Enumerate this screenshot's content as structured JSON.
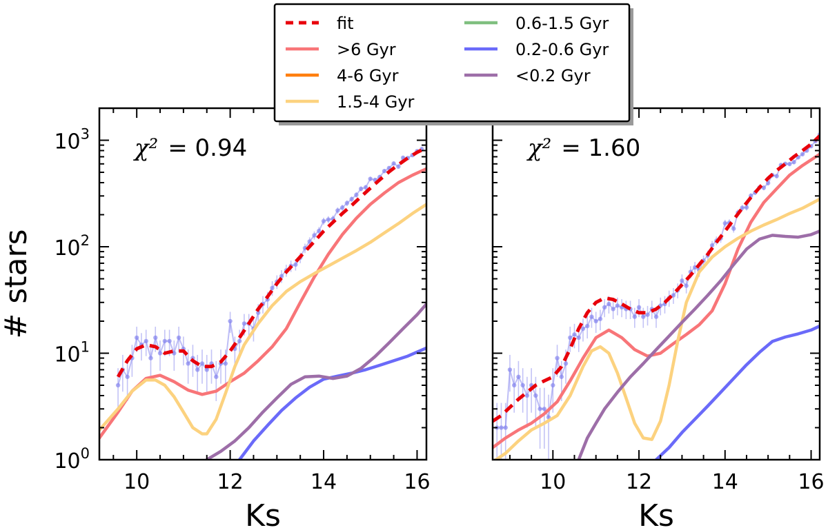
{
  "chart_data": [
    {
      "type": "line",
      "panel": "left",
      "annotation": {
        "symbol": "χ²",
        "value": "0.94"
      },
      "xlabel": "Ks",
      "ylabel": "# stars",
      "xlim": [
        9.2,
        16.2
      ],
      "ylim": [
        1,
        2000
      ],
      "yscale": "log",
      "xticks": [
        10,
        12,
        14,
        16
      ],
      "yticks": [
        {
          "v": 1,
          "base": "10",
          "exp": "0"
        },
        {
          "v": 10,
          "base": "10",
          "exp": "1"
        },
        {
          "v": 100,
          "base": "10",
          "exp": "2"
        },
        {
          "v": 1000,
          "base": "10",
          "exp": "3"
        }
      ],
      "observed": {
        "name": "data",
        "x": [
          9.6,
          9.7,
          9.8,
          9.9,
          10.0,
          10.1,
          10.2,
          10.3,
          10.4,
          10.5,
          10.6,
          10.7,
          10.8,
          10.9,
          11.0,
          11.1,
          11.2,
          11.3,
          11.4,
          11.5,
          11.6,
          11.7,
          11.8,
          11.9,
          12.0,
          12.1,
          12.2,
          12.3,
          12.4,
          12.5,
          12.6,
          12.7,
          12.8,
          12.9,
          13.0,
          13.1,
          13.2,
          13.3,
          13.4,
          13.5,
          13.6,
          13.7,
          13.8,
          13.9,
          14.0,
          14.1,
          14.2,
          14.3,
          14.4,
          14.5,
          14.6,
          14.7,
          14.8,
          14.9,
          15.0,
          15.1,
          15.2,
          15.3,
          15.4,
          15.5,
          15.6,
          15.7,
          15.8,
          15.9,
          16.0,
          16.1
        ],
        "y": [
          5,
          7,
          6,
          9,
          14,
          12,
          13,
          9,
          14,
          10,
          13,
          13,
          10,
          14,
          11,
          8,
          9,
          7,
          8,
          7,
          8,
          6,
          8,
          8,
          20,
          11,
          13,
          19,
          19,
          17,
          24,
          29,
          32,
          41,
          47,
          53,
          60,
          66,
          68,
          79,
          97,
          112,
          128,
          141,
          174,
          180,
          183,
          219,
          233,
          257,
          280,
          307,
          350,
          361,
          434,
          424,
          452,
          514,
          548,
          605,
          566,
          686,
          680,
          725,
          790,
          827
        ]
      },
      "series": [
        {
          "name": "fit",
          "color": "#e8000b",
          "dash": true,
          "x": [
            9.6,
            9.8,
            10.0,
            10.2,
            10.4,
            10.6,
            10.8,
            11.0,
            11.2,
            11.4,
            11.6,
            11.8,
            12.0,
            12.2,
            12.4,
            12.6,
            12.8,
            13.0,
            13.2,
            13.4,
            13.6,
            13.8,
            14.0,
            14.2,
            14.4,
            14.6,
            14.8,
            15.0,
            15.2,
            15.4,
            15.6,
            15.8,
            16.0,
            16.2
          ],
          "y": [
            6,
            8.5,
            11,
            12,
            11.5,
            10,
            10.5,
            10.5,
            8.5,
            7.5,
            7.5,
            8.3,
            10.5,
            14,
            19,
            26,
            34,
            45,
            58,
            72,
            90,
            112,
            140,
            170,
            205,
            245,
            295,
            355,
            425,
            505,
            590,
            680,
            770,
            850
          ]
        },
        {
          "name": ">6 Gyr",
          "color": "#f87578",
          "x": [
            9.2,
            9.6,
            9.9,
            10.2,
            10.5,
            10.8,
            11.1,
            11.4,
            11.7,
            12.0,
            12.3,
            12.6,
            12.9,
            13.2,
            13.5,
            13.8,
            14.1,
            14.4,
            14.7,
            15.0,
            15.3,
            15.6,
            15.9,
            16.2
          ],
          "y": [
            1.6,
            2.8,
            4.4,
            5.8,
            6.2,
            5.4,
            4.5,
            4.1,
            4.4,
            5.4,
            6.5,
            8.5,
            11.5,
            17,
            30,
            52,
            85,
            130,
            185,
            250,
            320,
            400,
            470,
            540
          ]
        },
        {
          "name": "4-6 Gyr",
          "color": "#ff7f0e",
          "x": [],
          "y": []
        },
        {
          "name": "1.5-4 Gyr",
          "color": "#fcd27f",
          "x": [
            9.2,
            9.6,
            9.9,
            10.2,
            10.4,
            10.6,
            10.8,
            11.0,
            11.2,
            11.4,
            11.5,
            11.7,
            11.9,
            12.1,
            12.3,
            12.6,
            12.9,
            13.2,
            13.5,
            13.8,
            14.1,
            14.4,
            14.7,
            15.0,
            15.3,
            15.6,
            15.9,
            16.2
          ],
          "y": [
            1.9,
            3,
            4.4,
            5.6,
            5.6,
            5,
            3.9,
            2.8,
            2.0,
            1.75,
            1.75,
            2.4,
            4.2,
            7.5,
            12,
            19,
            28,
            38,
            47,
            56,
            66,
            78,
            92,
            110,
            135,
            165,
            205,
            250
          ]
        },
        {
          "name": "0.6-1.5 Gyr",
          "color": "#7fbf7f",
          "x": [],
          "y": []
        },
        {
          "name": "0.2-0.6 Gyr",
          "color": "#6a6af9",
          "x": [
            12.2,
            12.5,
            12.8,
            13.1,
            13.4,
            13.7,
            14.0,
            14.3,
            14.6,
            14.9,
            15.2,
            15.5,
            15.8,
            16.2
          ],
          "y": [
            1,
            1.5,
            2.1,
            2.9,
            3.8,
            4.8,
            5.7,
            6.1,
            6.5,
            7,
            7.7,
            8.5,
            9.4,
            11.2
          ]
        },
        {
          "name": "<0.2 Gyr",
          "color": "#9d6ea8",
          "x": [
            11.5,
            11.8,
            12.1,
            12.4,
            12.7,
            13.0,
            13.3,
            13.6,
            13.9,
            14.2,
            14.5,
            14.8,
            15.1,
            15.4,
            15.7,
            16.0,
            16.2
          ],
          "y": [
            1,
            1.2,
            1.5,
            2,
            2.8,
            3.8,
            5.1,
            6.0,
            6.1,
            5.8,
            6.1,
            7.2,
            9.3,
            12.5,
            17,
            23,
            29
          ]
        }
      ]
    },
    {
      "type": "line",
      "panel": "right",
      "annotation": {
        "symbol": "χ²",
        "value": "1.60"
      },
      "xlabel": "Ks",
      "ylabel": "",
      "xlim": [
        8.6,
        16.2
      ],
      "ylim": [
        1,
        2000
      ],
      "yscale": "log",
      "xticks": [
        10,
        12,
        14,
        16
      ],
      "yticks": [],
      "observed": {
        "name": "data",
        "x": [
          8.7,
          8.8,
          8.9,
          9.0,
          9.1,
          9.2,
          9.3,
          9.4,
          9.5,
          9.6,
          9.7,
          9.8,
          9.9,
          10.0,
          10.1,
          10.2,
          10.3,
          10.4,
          10.5,
          10.6,
          10.7,
          10.8,
          10.9,
          11.0,
          11.1,
          11.2,
          11.3,
          11.4,
          11.5,
          11.6,
          11.7,
          11.8,
          11.9,
          12.0,
          12.1,
          12.2,
          12.3,
          12.4,
          12.5,
          12.6,
          12.7,
          12.8,
          12.9,
          13.0,
          13.1,
          13.2,
          13.3,
          13.4,
          13.5,
          13.6,
          13.7,
          13.8,
          13.9,
          14.0,
          14.1,
          14.2,
          14.3,
          14.4,
          14.5,
          14.6,
          14.7,
          14.8,
          14.9,
          15.0,
          15.1,
          15.2,
          15.3,
          15.4,
          15.5,
          15.6,
          15.7,
          15.8,
          15.9,
          16.0,
          16.1,
          16.2
        ],
        "y": [
          2,
          2,
          2,
          7,
          5,
          6,
          5,
          4,
          5,
          4,
          3,
          3,
          2.5,
          5,
          9,
          6,
          8,
          14,
          15,
          14,
          17,
          18,
          22,
          20,
          21,
          27,
          29,
          26,
          28,
          27,
          26,
          26,
          22,
          27,
          22,
          23,
          26,
          22,
          28,
          29,
          33,
          35,
          39,
          48,
          43,
          58,
          64,
          60,
          74,
          83,
          103,
          114,
          120,
          166,
          168,
          148,
          209,
          232,
          234,
          301,
          323,
          360,
          358,
          396,
          470,
          461,
          585,
          601,
          598,
          623,
          692,
          740,
          800,
          880,
          980,
          1130
        ]
      },
      "series": [
        {
          "name": "fit",
          "color": "#e8000b",
          "dash": true,
          "x": [
            8.6,
            8.8,
            9.0,
            9.2,
            9.4,
            9.6,
            9.8,
            10.0,
            10.2,
            10.4,
            10.6,
            10.8,
            11.0,
            11.2,
            11.4,
            11.6,
            11.8,
            12.0,
            12.2,
            12.4,
            12.6,
            12.8,
            13.0,
            13.2,
            13.4,
            13.6,
            13.8,
            14.0,
            14.2,
            14.4,
            14.6,
            14.8,
            15.0,
            15.2,
            15.4,
            15.6,
            15.8,
            16.0,
            16.2
          ],
          "y": [
            2.3,
            2.6,
            3.1,
            3.7,
            4.3,
            5,
            5.5,
            6,
            7.5,
            11,
            17,
            24,
            30,
            33,
            32,
            29,
            26,
            24,
            24,
            26,
            30,
            36,
            44,
            54,
            68,
            85,
            110,
            140,
            180,
            230,
            290,
            360,
            440,
            520,
            600,
            700,
            800,
            920,
            1100
          ]
        },
        {
          "name": ">6 Gyr",
          "color": "#f87578",
          "x": [
            8.6,
            8.9,
            9.2,
            9.5,
            9.8,
            10.1,
            10.4,
            10.7,
            11.0,
            11.3,
            11.6,
            11.9,
            12.2,
            12.5,
            12.8,
            13.1,
            13.4,
            13.7,
            14.0,
            14.3,
            14.6,
            14.9,
            15.2,
            15.5,
            15.8,
            16.2
          ],
          "y": [
            1.3,
            1.6,
            1.9,
            2.2,
            2.7,
            3.5,
            5.5,
            9,
            14,
            16.5,
            14,
            10.8,
            9.4,
            10,
            12.3,
            15,
            18.5,
            25,
            45,
            95,
            170,
            260,
            350,
            470,
            580,
            740
          ]
        },
        {
          "name": "4-6 Gyr",
          "color": "#ff7f0e",
          "x": [],
          "y": []
        },
        {
          "name": "1.5-4 Gyr",
          "color": "#fcd27f",
          "x": [
            8.6,
            8.9,
            9.2,
            9.5,
            9.8,
            10.1,
            10.4,
            10.7,
            10.9,
            11.1,
            11.3,
            11.5,
            11.7,
            11.9,
            12.1,
            12.3,
            12.5,
            12.7,
            12.9,
            13.1,
            13.4,
            13.7,
            14.0,
            14.3,
            14.6,
            14.9,
            15.2,
            15.5,
            15.8,
            16.2
          ],
          "y": [
            0.95,
            1.15,
            1.5,
            1.9,
            2.2,
            2.6,
            4,
            7.5,
            10.5,
            11.5,
            10,
            6.5,
            3.8,
            2.2,
            1.6,
            1.55,
            2.3,
            5,
            13,
            30,
            58,
            80,
            100,
            120,
            140,
            160,
            180,
            205,
            230,
            280
          ]
        },
        {
          "name": "0.6-1.5 Gyr",
          "color": "#7fbf7f",
          "x": [],
          "y": []
        },
        {
          "name": "0.2-0.6 Gyr",
          "color": "#6a6af9",
          "x": [
            12.4,
            12.7,
            13.0,
            13.3,
            13.6,
            13.9,
            14.2,
            14.5,
            14.8,
            15.1,
            15.4,
            15.7,
            16.0,
            16.2
          ],
          "y": [
            1,
            1.3,
            1.8,
            2.4,
            3.2,
            4.3,
            5.8,
            7.8,
            10.2,
            12.9,
            14.2,
            15.2,
            16.5,
            18
          ]
        },
        {
          "name": "<0.2 Gyr",
          "color": "#9d6ea8",
          "x": [
            10.6,
            10.8,
            11.0,
            11.2,
            11.5,
            11.8,
            12.1,
            12.4,
            12.7,
            13.0,
            13.3,
            13.6,
            13.9,
            14.2,
            14.5,
            14.8,
            15.1,
            15.4,
            15.7,
            16.0,
            16.2
          ],
          "y": [
            1,
            1.6,
            2.2,
            3,
            4.3,
            6,
            8,
            10.8,
            14.5,
            19.5,
            26,
            35,
            48,
            68,
            95,
            118,
            128,
            125,
            123,
            130,
            140
          ]
        }
      ]
    }
  ],
  "legend": {
    "placement": "top-center",
    "entries": [
      {
        "label": "fit",
        "color": "#e8000b",
        "dash": true
      },
      {
        "label": ">6 Gyr",
        "color": "#f87578"
      },
      {
        "label": "4-6 Gyr",
        "color": "#ff7f0e"
      },
      {
        "label": "1.5-4 Gyr",
        "color": "#fcd27f"
      },
      {
        "label": "0.6-1.5 Gyr",
        "color": "#7fbf7f"
      },
      {
        "label": "0.2-0.6 Gyr",
        "color": "#6a6af9"
      },
      {
        "label": "<0.2 Gyr",
        "color": "#9d6ea8"
      }
    ]
  }
}
